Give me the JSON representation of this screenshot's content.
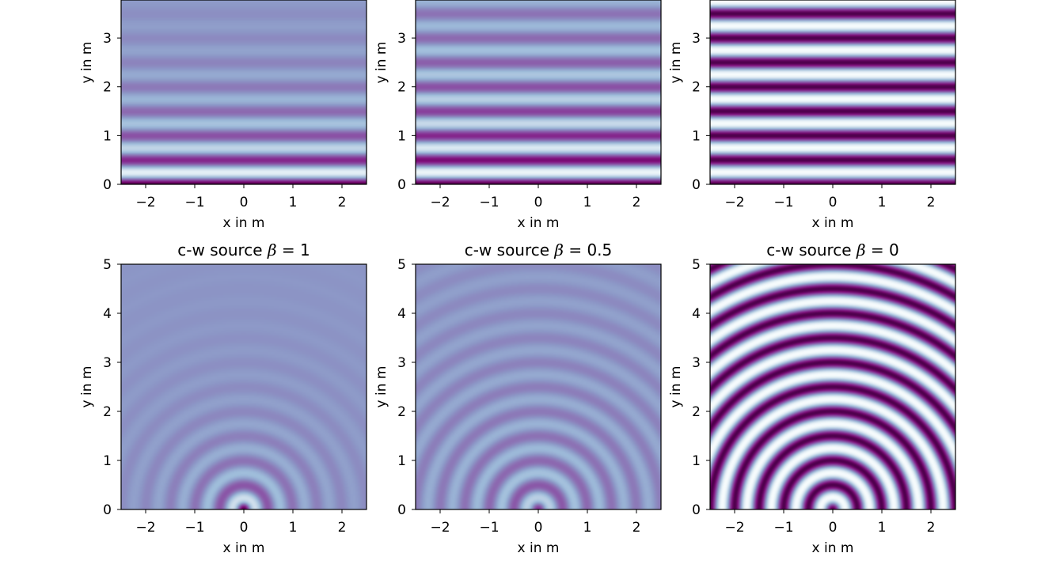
{
  "chart_data": [
    {
      "type": "heatmap",
      "subtype": "plane-wave",
      "title": "",
      "beta": 1,
      "xlabel": "x in m",
      "ylabel": "y in m",
      "xlim": [
        -2.5,
        2.5
      ],
      "ylim": [
        0,
        5
      ],
      "xticks": [
        "−2",
        "−1",
        "0",
        "1",
        "2"
      ],
      "xtick_values": [
        -2,
        -1,
        0,
        1,
        2
      ],
      "yticks": [
        "0",
        "1",
        "2",
        "3"
      ],
      "ytick_values": [
        0,
        1,
        2,
        3
      ],
      "colormap": "BuPu_r",
      "grid": false
    },
    {
      "type": "heatmap",
      "subtype": "plane-wave",
      "title": "",
      "beta": 0.5,
      "xlabel": "x in m",
      "ylabel": "y in m",
      "xlim": [
        -2.5,
        2.5
      ],
      "ylim": [
        0,
        5
      ],
      "xticks": [
        "−2",
        "−1",
        "0",
        "1",
        "2"
      ],
      "xtick_values": [
        -2,
        -1,
        0,
        1,
        2
      ],
      "yticks": [
        "0",
        "1",
        "2",
        "3"
      ],
      "ytick_values": [
        0,
        1,
        2,
        3
      ],
      "colormap": "BuPu_r",
      "grid": false
    },
    {
      "type": "heatmap",
      "subtype": "plane-wave",
      "title": "",
      "beta": 0,
      "xlabel": "x in m",
      "ylabel": "y in m",
      "xlim": [
        -2.5,
        2.5
      ],
      "ylim": [
        0,
        5
      ],
      "xticks": [
        "−2",
        "−1",
        "0",
        "1",
        "2"
      ],
      "xtick_values": [
        -2,
        -1,
        0,
        1,
        2
      ],
      "yticks": [
        "0",
        "1",
        "2",
        "3"
      ],
      "ytick_values": [
        0,
        1,
        2,
        3
      ],
      "colormap": "BuPu_r",
      "grid": false
    },
    {
      "type": "heatmap",
      "subtype": "cylindrical-wave",
      "title_prefix": "c-w source ",
      "title_symbol": "β",
      "title_suffix": " = 1",
      "beta": 1,
      "xlabel": "x in m",
      "ylabel": "y in m",
      "xlim": [
        -2.5,
        2.5
      ],
      "ylim": [
        0,
        5
      ],
      "xticks": [
        "−2",
        "−1",
        "0",
        "1",
        "2"
      ],
      "xtick_values": [
        -2,
        -1,
        0,
        1,
        2
      ],
      "yticks": [
        "0",
        "1",
        "2",
        "3",
        "4",
        "5"
      ],
      "ytick_values": [
        0,
        1,
        2,
        3,
        4,
        5
      ],
      "colormap": "BuPu_r",
      "grid": false
    },
    {
      "type": "heatmap",
      "subtype": "cylindrical-wave",
      "title_prefix": "c-w source ",
      "title_symbol": "β",
      "title_suffix": " = 0.5",
      "beta": 0.5,
      "xlabel": "x in m",
      "ylabel": "y in m",
      "xlim": [
        -2.5,
        2.5
      ],
      "ylim": [
        0,
        5
      ],
      "xticks": [
        "−2",
        "−1",
        "0",
        "1",
        "2"
      ],
      "xtick_values": [
        -2,
        -1,
        0,
        1,
        2
      ],
      "yticks": [
        "0",
        "1",
        "2",
        "3",
        "4",
        "5"
      ],
      "ytick_values": [
        0,
        1,
        2,
        3,
        4,
        5
      ],
      "colormap": "BuPu_r",
      "grid": false
    },
    {
      "type": "heatmap",
      "subtype": "cylindrical-wave",
      "title_prefix": "c-w source ",
      "title_symbol": "β",
      "title_suffix": " = 0",
      "beta": 0,
      "xlabel": "x in m",
      "ylabel": "y in m",
      "xlim": [
        -2.5,
        2.5
      ],
      "ylim": [
        0,
        5
      ],
      "xticks": [
        "−2",
        "−1",
        "0",
        "1",
        "2"
      ],
      "xtick_values": [
        -2,
        -1,
        0,
        1,
        2
      ],
      "yticks": [
        "0",
        "1",
        "2",
        "3",
        "4",
        "5"
      ],
      "ytick_values": [
        0,
        1,
        2,
        3,
        4,
        5
      ],
      "colormap": "BuPu_r",
      "grid": false
    }
  ]
}
